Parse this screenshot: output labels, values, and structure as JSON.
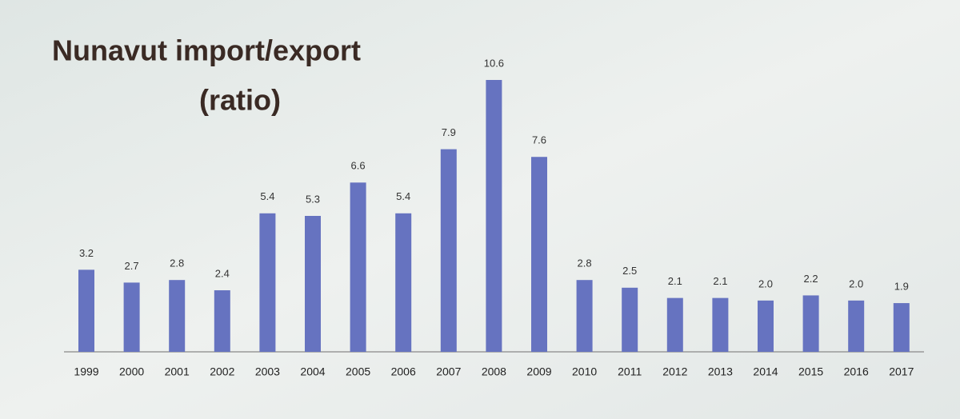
{
  "chart_data": {
    "type": "bar",
    "title": [
      "Nunavut import/export",
      "(ratio)"
    ],
    "categories": [
      "1999",
      "2000",
      "2001",
      "2002",
      "2003",
      "2004",
      "2005",
      "2006",
      "2007",
      "2008",
      "2009",
      "2010",
      "2011",
      "2012",
      "2013",
      "2014",
      "2015",
      "2016",
      "2017"
    ],
    "values": [
      3.2,
      2.7,
      2.8,
      2.4,
      5.4,
      5.3,
      6.6,
      5.4,
      7.9,
      10.6,
      7.6,
      2.8,
      2.5,
      2.1,
      2.1,
      2.0,
      2.2,
      2.0,
      1.9
    ],
    "value_labels": [
      "3.2",
      "2.7",
      "2.8",
      "2.4",
      "5.4",
      "5.3",
      "6.6",
      "5.4",
      "7.9",
      "10.6",
      "7.6",
      "2.8",
      "2.5",
      "2.1",
      "2.1",
      "2.0",
      "2.2",
      "2.0",
      "1.9"
    ],
    "color": "#6673c0"
  }
}
